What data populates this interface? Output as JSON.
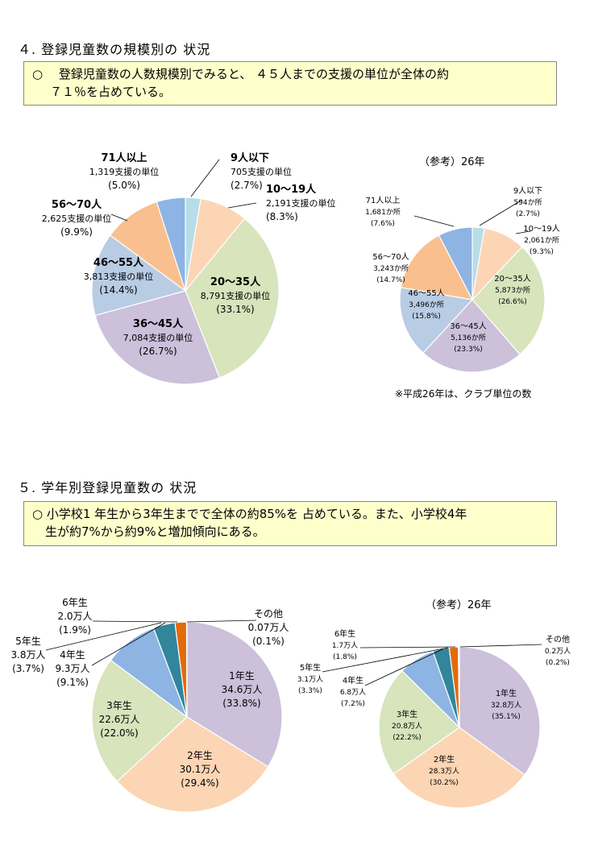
{
  "section4": {
    "heading": "４. 登録児童数の規模別の 状況",
    "summary_line1": "○　 登録児童数の人数規模別でみると、 ４５人までの支援の単位が全体の約",
    "summary_line2": "７１％を占めている。",
    "ref_title": "（参考）26年",
    "ref_note": "※平成26年は、クラブ単位の数"
  },
  "section5": {
    "heading": "５. 学年別登録児童数の 状況",
    "summary_line1": "○  小学校1 年生から3年生までで全体の約85%を 占めている。また、小学校4年",
    "summary_line2": "生が約7%から約9%と増加傾向にある。",
    "ref_title": "（参考）26年"
  },
  "chart_data": [
    {
      "type": "pie",
      "title": "登録児童数の規模別（支援の単位）",
      "categories": [
        "9人以下",
        "10～19人",
        "20～35人",
        "36～45人",
        "46～55人",
        "56～70人",
        "71人以上"
      ],
      "values": [
        705,
        2191,
        8791,
        7084,
        3813,
        2625,
        1319
      ],
      "value_labels": [
        "705支援の単位",
        "2,191支援の単位",
        "8,791支援の単位",
        "7,084支援の単位",
        "3,813支援の単位",
        "2,625支援の単位",
        "1,319支援の単位"
      ],
      "percent_labels": [
        "(2.7%)",
        "(8.3%)",
        "(33.1%)",
        "(26.7%)",
        "(14.4%)",
        "(9.9%)",
        "(5.0%)"
      ],
      "colors": [
        "#b7dde8",
        "#fcd5b4",
        "#d7e4bc",
        "#ccc0da",
        "#b8cce4",
        "#fabf8f",
        "#8db4e2"
      ]
    },
    {
      "type": "pie",
      "title": "（参考）26年",
      "categories": [
        "9人以下",
        "10～19人",
        "20～35人",
        "36～45人",
        "46～55人",
        "56～70人",
        "71人以上"
      ],
      "values": [
        594,
        2061,
        5873,
        5136,
        3496,
        3243,
        1681
      ],
      "value_labels": [
        "594か所",
        "2,061か所",
        "5,873か所",
        "5,136か所",
        "3,496か所",
        "3,243か所",
        "1,681か所"
      ],
      "percent_labels": [
        "(2.7%)",
        "(9.3%)",
        "(26.6%)",
        "(23.3%)",
        "(15.8%)",
        "(14.7%)",
        "(7.6%)"
      ],
      "colors": [
        "#b7dde8",
        "#fcd5b4",
        "#d7e4bc",
        "#ccc0da",
        "#b8cce4",
        "#fabf8f",
        "#8db4e2"
      ]
    },
    {
      "type": "pie",
      "title": "学年別登録児童数",
      "categories": [
        "1年生",
        "2年生",
        "3年生",
        "4年生",
        "5年生",
        "6年生",
        "その他"
      ],
      "values": [
        34.6,
        30.1,
        22.6,
        9.3,
        3.8,
        2.0,
        0.07
      ],
      "value_labels": [
        "34.6万人",
        "30.1万人",
        "22.6万人",
        "9.3万人",
        "3.8万人",
        "2.0万人",
        "0.07万人"
      ],
      "percent_labels": [
        "(33.8%)",
        "(29.4%)",
        "(22.0%)",
        "(9.1%)",
        "(3.7%)",
        "(1.9%)",
        "(0.1%)"
      ],
      "colors": [
        "#ccc0da",
        "#fcd5b4",
        "#d7e4bc",
        "#8db4e2",
        "#31869b",
        "#e26b0a",
        "#4f81bd"
      ]
    },
    {
      "type": "pie",
      "title": "（参考）26年",
      "categories": [
        "1年生",
        "2年生",
        "3年生",
        "4年生",
        "5年生",
        "6年生",
        "その他"
      ],
      "values": [
        32.8,
        28.3,
        20.8,
        6.8,
        3.1,
        1.7,
        0.2
      ],
      "value_labels": [
        "32.8万人",
        "28.3万人",
        "20.8万人",
        "6.8万人",
        "3.1万人",
        "1.7万人",
        "0.2万人"
      ],
      "percent_labels": [
        "(35.1%)",
        "(30.2%)",
        "(22.2%)",
        "(7.2%)",
        "(3.3%)",
        "(1.8%)",
        "(0.2%)"
      ],
      "colors": [
        "#ccc0da",
        "#fcd5b4",
        "#d7e4bc",
        "#8db4e2",
        "#31869b",
        "#e26b0a",
        "#4f81bd"
      ]
    }
  ]
}
